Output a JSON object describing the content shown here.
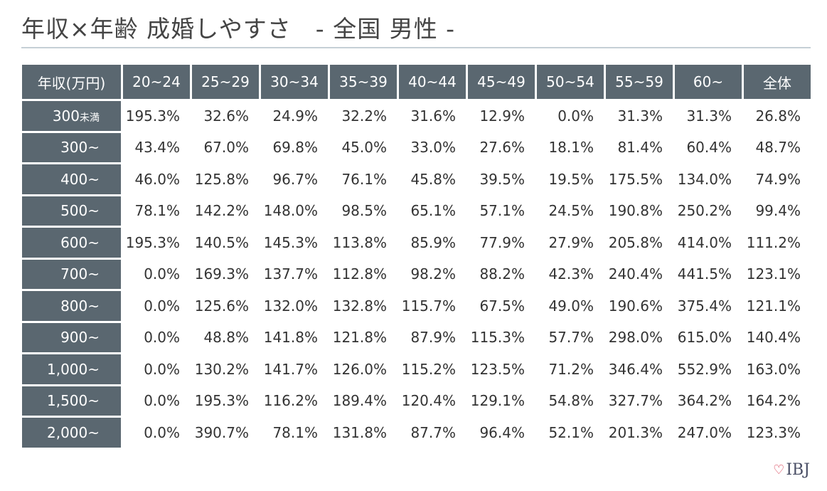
{
  "chart_data": {
    "type": "table",
    "title": "年収×年齢 成婚しやすさ　- 全国 男性 -",
    "corner_label": "年収(万円)",
    "columns": [
      "20~24",
      "25~29",
      "30~34",
      "35~39",
      "40~44",
      "45~49",
      "50~54",
      "55~59",
      "60~",
      "全体"
    ],
    "rows": [
      {
        "label": "300",
        "label_suffix": "未満",
        "values": [
          "195.3%",
          "32.6%",
          "24.9%",
          "32.2%",
          "31.6%",
          "12.9%",
          "0.0%",
          "31.3%",
          "31.3%",
          "26.8%"
        ]
      },
      {
        "label": "300~",
        "label_suffix": "",
        "values": [
          "43.4%",
          "67.0%",
          "69.8%",
          "45.0%",
          "33.0%",
          "27.6%",
          "18.1%",
          "81.4%",
          "60.4%",
          "48.7%"
        ]
      },
      {
        "label": "400~",
        "label_suffix": "",
        "values": [
          "46.0%",
          "125.8%",
          "96.7%",
          "76.1%",
          "45.8%",
          "39.5%",
          "19.5%",
          "175.5%",
          "134.0%",
          "74.9%"
        ]
      },
      {
        "label": "500~",
        "label_suffix": "",
        "values": [
          "78.1%",
          "142.2%",
          "148.0%",
          "98.5%",
          "65.1%",
          "57.1%",
          "24.5%",
          "190.8%",
          "250.2%",
          "99.4%"
        ]
      },
      {
        "label": "600~",
        "label_suffix": "",
        "values": [
          "195.3%",
          "140.5%",
          "145.3%",
          "113.8%",
          "85.9%",
          "77.9%",
          "27.9%",
          "205.8%",
          "414.0%",
          "111.2%"
        ]
      },
      {
        "label": "700~",
        "label_suffix": "",
        "values": [
          "0.0%",
          "169.3%",
          "137.7%",
          "112.8%",
          "98.2%",
          "88.2%",
          "42.3%",
          "240.4%",
          "441.5%",
          "123.1%"
        ]
      },
      {
        "label": "800~",
        "label_suffix": "",
        "values": [
          "0.0%",
          "125.6%",
          "132.0%",
          "132.8%",
          "115.7%",
          "67.5%",
          "49.0%",
          "190.6%",
          "375.4%",
          "121.1%"
        ]
      },
      {
        "label": "900~",
        "label_suffix": "",
        "values": [
          "0.0%",
          "48.8%",
          "141.8%",
          "121.8%",
          "87.9%",
          "115.3%",
          "57.7%",
          "298.0%",
          "615.0%",
          "140.4%"
        ]
      },
      {
        "label": "1,000~",
        "label_suffix": "",
        "values": [
          "0.0%",
          "130.2%",
          "141.7%",
          "126.0%",
          "115.2%",
          "123.5%",
          "71.2%",
          "346.4%",
          "552.9%",
          "163.0%"
        ]
      },
      {
        "label": "1,500~",
        "label_suffix": "",
        "values": [
          "0.0%",
          "195.3%",
          "116.2%",
          "189.4%",
          "120.4%",
          "129.1%",
          "54.8%",
          "327.7%",
          "364.2%",
          "164.2%"
        ]
      },
      {
        "label": "2,000~",
        "label_suffix": "",
        "values": [
          "0.0%",
          "390.7%",
          "78.1%",
          "131.8%",
          "87.7%",
          "96.4%",
          "52.1%",
          "201.3%",
          "247.0%",
          "123.3%"
        ]
      }
    ],
    "header_color": "#5a6770",
    "cell_background": "#ffffff"
  },
  "logo": {
    "text": "IBJ",
    "icon": "heart-icon",
    "icon_color": "#d6334a"
  }
}
